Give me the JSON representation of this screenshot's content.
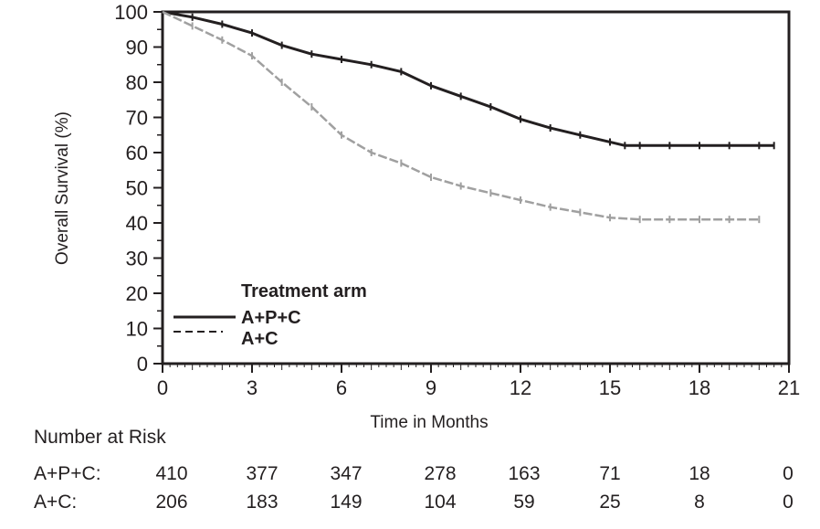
{
  "chart_data": {
    "type": "line",
    "xlabel": "Time in Months",
    "ylabel": "Overall Survival (%)",
    "xlim": [
      0,
      21
    ],
    "ylim": [
      0,
      100
    ],
    "x_ticks": [
      "0",
      "3",
      "6",
      "9",
      "12",
      "15",
      "18",
      "21"
    ],
    "y_ticks": [
      "0",
      "10",
      "20",
      "30",
      "40",
      "50",
      "60",
      "70",
      "80",
      "90",
      "100"
    ],
    "grid": false,
    "legend": {
      "title": "Treatment arm",
      "placement": "bottom-left"
    },
    "series": [
      {
        "name": "A+P+C",
        "color": "#231f20",
        "line_style": "solid",
        "x": [
          0,
          1,
          2,
          3,
          4,
          5,
          6,
          7,
          8,
          9,
          10,
          11,
          12,
          13,
          14,
          15,
          15.5,
          16,
          17,
          18,
          19,
          20,
          20.5
        ],
        "y": [
          100,
          98.5,
          96.5,
          94,
          90.5,
          88,
          86.5,
          85,
          83,
          79,
          76,
          73,
          69.5,
          67,
          65,
          63,
          62,
          62,
          62,
          62,
          62,
          62,
          62
        ]
      },
      {
        "name": "A+C",
        "color": "#a0a0a0",
        "line_style": "dashed",
        "x": [
          0,
          1,
          2,
          3,
          4,
          5,
          6,
          7,
          8,
          9,
          10,
          11,
          12,
          13,
          14,
          15,
          16,
          17,
          18,
          19,
          20
        ],
        "y": [
          100,
          96,
          92,
          87.5,
          80,
          73,
          65,
          60,
          57,
          53,
          50.5,
          48.5,
          46.5,
          44.5,
          43,
          41.5,
          41,
          41,
          41,
          41,
          41
        ]
      }
    ]
  },
  "risk_table": {
    "title": "Number at Risk",
    "rows": [
      {
        "name": "A+P+C:",
        "values": [
          "410",
          "377",
          "347",
          "278",
          "163",
          "71",
          "18",
          "0"
        ]
      },
      {
        "name": "A+C:",
        "values": [
          "206",
          "183",
          "149",
          "104",
          "59",
          "25",
          "8",
          "0"
        ]
      }
    ]
  }
}
